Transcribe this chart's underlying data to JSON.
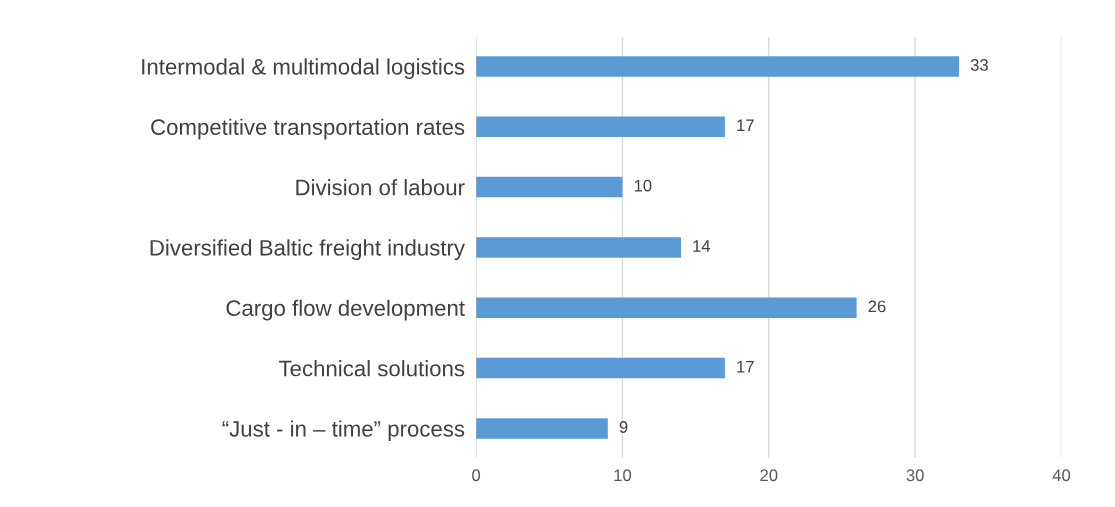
{
  "chart_data": {
    "type": "bar",
    "orientation": "horizontal",
    "categories": [
      "Intermodal & multimodal logistics",
      "Competitive transportation rates",
      "Division of labour",
      "Diversified Baltic freight industry",
      "Cargo flow development",
      "Technical solutions",
      "“Just - in – time” process"
    ],
    "values": [
      33,
      17,
      10,
      14,
      26,
      17,
      9
    ],
    "color": "#5b9bd5",
    "xlim": [
      0,
      40
    ],
    "xticks": [
      0,
      10,
      20,
      30,
      40
    ],
    "grid": "x",
    "data_labels": true
  }
}
